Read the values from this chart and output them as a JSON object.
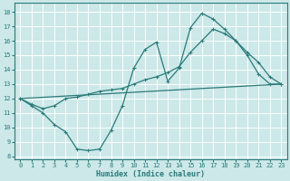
{
  "xlabel": "Humidex (Indice chaleur)",
  "bg_color": "#cce8e8",
  "line_color": "#2a7a7a",
  "grid_color": "#b0d8d8",
  "xlim": [
    -0.5,
    23.5
  ],
  "ylim": [
    7.8,
    18.6
  ],
  "yticks": [
    8,
    9,
    10,
    11,
    12,
    13,
    14,
    15,
    16,
    17,
    18
  ],
  "xticks": [
    0,
    1,
    2,
    3,
    4,
    5,
    6,
    7,
    8,
    9,
    10,
    11,
    12,
    13,
    14,
    15,
    16,
    17,
    18,
    19,
    20,
    21,
    22,
    23
  ],
  "curve1_x": [
    0,
    1,
    2,
    3,
    4,
    5,
    6,
    7,
    8,
    9,
    10,
    11,
    12,
    13,
    14,
    15,
    16,
    17,
    18,
    19,
    20,
    21,
    22,
    23
  ],
  "curve1_y": [
    12.0,
    11.5,
    11.0,
    10.2,
    9.7,
    8.5,
    8.4,
    8.5,
    9.8,
    11.5,
    14.1,
    15.4,
    15.9,
    13.2,
    14.1,
    16.9,
    17.9,
    17.5,
    16.8,
    16.0,
    15.0,
    13.7,
    13.0,
    13.0
  ],
  "curve2_x": [
    0,
    1,
    2,
    3,
    4,
    5,
    6,
    7,
    8,
    9,
    10,
    11,
    12,
    13,
    14,
    15,
    16,
    17,
    18,
    19,
    20,
    21,
    22,
    23
  ],
  "curve2_y": [
    12.0,
    11.6,
    11.3,
    11.5,
    12.0,
    12.1,
    12.3,
    12.5,
    12.6,
    12.7,
    13.0,
    13.3,
    13.5,
    13.8,
    14.2,
    15.2,
    16.0,
    16.8,
    16.5,
    16.0,
    15.2,
    14.5,
    13.5,
    13.0
  ],
  "line3_x": [
    0,
    23
  ],
  "line3_y": [
    12.0,
    13.0
  ]
}
